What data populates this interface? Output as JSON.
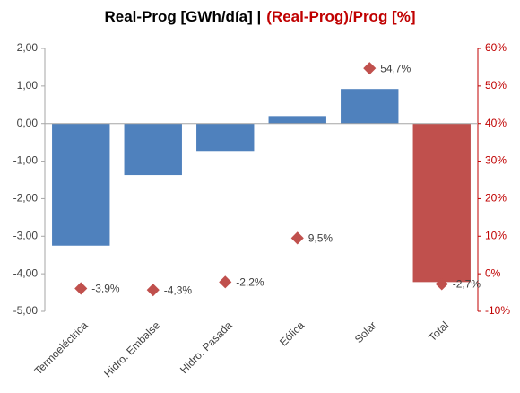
{
  "chart_data": {
    "type": "bar",
    "title": "Real-Prog [GWh/día]  |",
    "title2": "(Real-Prog)/Prog [%]",
    "title2_color": "#c00000",
    "categories": [
      "Termoeléctrica",
      "Hidro. Embalse",
      "Hidro. Pasada",
      "Eólica",
      "Solar",
      "Total"
    ],
    "values": [
      -3.25,
      -1.37,
      -0.73,
      0.2,
      0.92,
      -4.22
    ],
    "bar_colors": [
      "#4f81bd",
      "#4f81bd",
      "#4f81bd",
      "#4f81bd",
      "#4f81bd",
      "#c0504d"
    ],
    "series": [
      {
        "type": "scatter",
        "axis": "y2",
        "color": "#c0504d",
        "values": [
          -3.9,
          -4.3,
          -2.2,
          9.5,
          54.7,
          -2.7
        ],
        "value_labels": [
          "-3,9%",
          "-4,3%",
          "-2,2%",
          "9,5%",
          "54,7%",
          "-2,7%"
        ]
      }
    ],
    "ylim": [
      -5,
      2
    ],
    "yticks": [
      {
        "value": -5,
        "label": "-5,00"
      },
      {
        "value": -4,
        "label": "-4,00"
      },
      {
        "value": -3,
        "label": "-3,00"
      },
      {
        "value": -2,
        "label": "-2,00"
      },
      {
        "value": -1,
        "label": "-1,00"
      },
      {
        "value": 0,
        "label": "0,00"
      },
      {
        "value": 1,
        "label": "1,00"
      },
      {
        "value": 2,
        "label": "2,00"
      }
    ],
    "y2lim": [
      -10,
      60
    ],
    "y2ticks": [
      {
        "value": -10,
        "label": "-10%"
      },
      {
        "value": 0,
        "label": "0%"
      },
      {
        "value": 10,
        "label": "10%"
      },
      {
        "value": 20,
        "label": "20%"
      },
      {
        "value": 30,
        "label": "30%"
      },
      {
        "value": 40,
        "label": "40%"
      },
      {
        "value": 50,
        "label": "50%"
      },
      {
        "value": 60,
        "label": "60%"
      }
    ],
    "y2_color": "#c00000",
    "grid": false
  }
}
